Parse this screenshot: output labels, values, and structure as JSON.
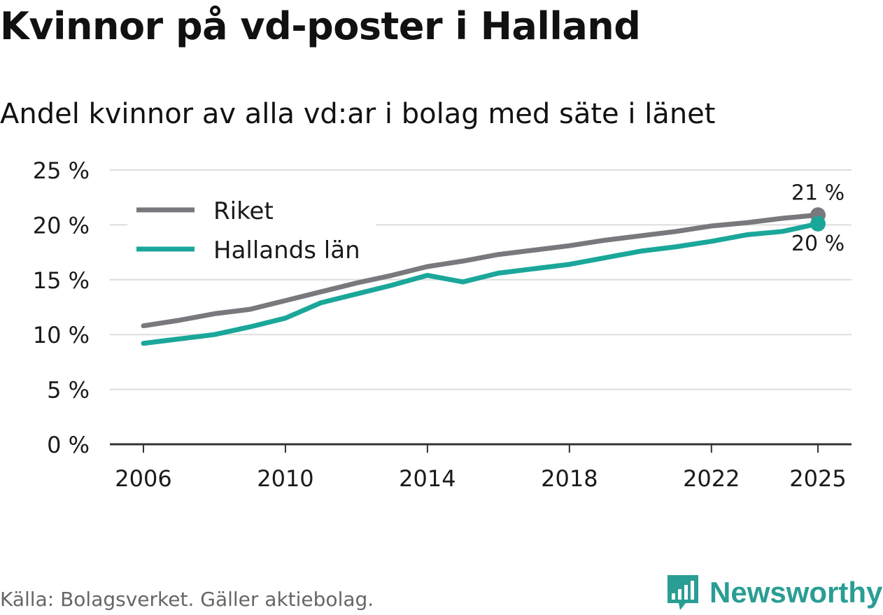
{
  "header": {
    "title": "Kvinnor på vd-poster i Halland",
    "subtitle": "Andel kvinnor av alla vd:ar i bolag med säte i länet"
  },
  "footer": {
    "source": "Källa: Bolagsverket. Gäller aktiebolag.",
    "brand": "Newsworthy"
  },
  "colors": {
    "riket": "#7a787d",
    "halland": "#1aa79a",
    "grid": "#dddddd",
    "axis": "#333333"
  },
  "chart_data": {
    "type": "line",
    "title": "Kvinnor på vd-poster i Halland",
    "subtitle": "Andel kvinnor av alla vd:ar i bolag med säte i länet",
    "xlabel": "",
    "ylabel": "",
    "x": [
      2006,
      2007,
      2008,
      2009,
      2010,
      2011,
      2012,
      2013,
      2014,
      2015,
      2016,
      2017,
      2018,
      2019,
      2020,
      2021,
      2022,
      2023,
      2024,
      2025
    ],
    "xticks": [
      2006,
      2010,
      2014,
      2018,
      2022,
      2025
    ],
    "yticks": [
      0,
      5,
      10,
      15,
      20,
      25
    ],
    "ytick_labels": [
      "0 %",
      "5 %",
      "10 %",
      "15 %",
      "20 %",
      "25 %"
    ],
    "ylim": [
      0,
      25
    ],
    "series": [
      {
        "name": "Riket",
        "key": "riket",
        "values": [
          10.8,
          11.3,
          11.9,
          12.3,
          13.1,
          13.9,
          14.7,
          15.4,
          16.2,
          16.7,
          17.3,
          17.7,
          18.1,
          18.6,
          19.0,
          19.4,
          19.9,
          20.2,
          20.6,
          20.9
        ],
        "end_label": "21 %"
      },
      {
        "name": "Hallands län",
        "key": "halland",
        "values": [
          9.2,
          9.6,
          10.0,
          10.7,
          11.5,
          12.9,
          13.7,
          14.5,
          15.4,
          14.8,
          15.6,
          16.0,
          16.4,
          17.0,
          17.6,
          18.0,
          18.5,
          19.1,
          19.4,
          20.1
        ],
        "end_label": "20 %"
      }
    ],
    "legend": [
      "Riket",
      "Hallands län"
    ],
    "legend_position": "top-left"
  }
}
